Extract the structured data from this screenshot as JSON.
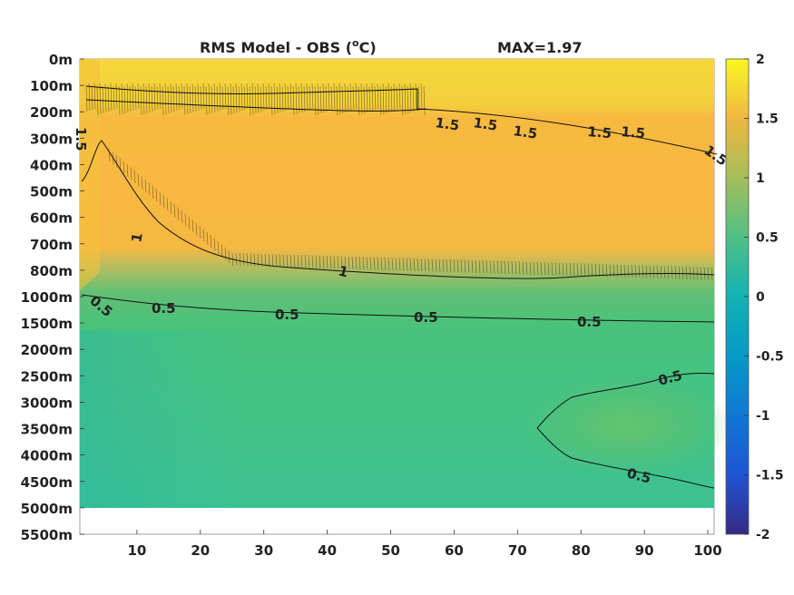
{
  "chart_data": {
    "type": "heatmap",
    "title": "RMS Model - OBS (",
    "title_sup": "o",
    "title_unit": "C)",
    "max_label": "MAX=1.97",
    "xlabel": "",
    "ylabel": "",
    "x_ticks": [
      "10",
      "20",
      "30",
      "40",
      "50",
      "60",
      "70",
      "80",
      "90",
      "100"
    ],
    "x_tick_values": [
      10,
      20,
      30,
      40,
      50,
      60,
      70,
      80,
      90,
      100
    ],
    "xlim": [
      1,
      101
    ],
    "y_ticks": [
      "0m",
      "100m",
      "200m",
      "300m",
      "400m",
      "500m",
      "600m",
      "700m",
      "800m",
      "1000m",
      "1500m",
      "2000m",
      "2500m",
      "3000m",
      "3500m",
      "4000m",
      "4500m",
      "5000m",
      "5500m"
    ],
    "y_levels_count": 18,
    "colorbar": {
      "ticks": [
        "2",
        "1.5",
        "1",
        "0.5",
        "0",
        "-0.5",
        "-1",
        "-1.5",
        "-2"
      ],
      "tick_values": [
        2,
        1.5,
        1,
        0.5,
        0,
        -0.5,
        -1,
        -1.5,
        -2
      ],
      "range": [
        -2,
        2
      ],
      "colormap": "parula"
    },
    "contour_labels": [
      "1.5",
      "1",
      "0.5"
    ],
    "contour_levels": [
      0.5,
      1,
      1.5
    ],
    "data_summary": {
      "upper_layer_0_200m": 1.8,
      "layer_200_800m": 1.3,
      "deep_1000_5000m": 0.65,
      "max": 1.97,
      "no_data_5500m": true
    }
  }
}
